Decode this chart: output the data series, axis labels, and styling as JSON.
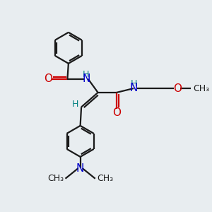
{
  "bg_color": "#e8edf0",
  "bond_color": "#1a1a1a",
  "o_color": "#cc0000",
  "n_color": "#0000cc",
  "h_color": "#008080",
  "line_width": 1.6,
  "font_size": 10,
  "fig_size": [
    3.0,
    3.0
  ],
  "dpi": 100,
  "xlim": [
    0,
    10
  ],
  "ylim": [
    0,
    10
  ]
}
